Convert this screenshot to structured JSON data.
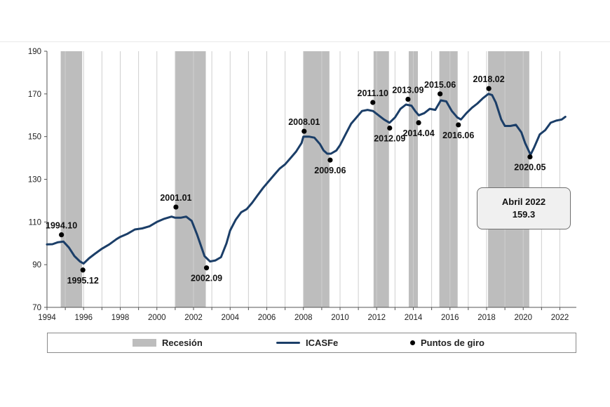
{
  "chart_data": {
    "type": "line",
    "title": "",
    "xlabel": "",
    "ylabel": "",
    "xlim": [
      1994,
      2022.9
    ],
    "ylim": [
      70,
      190
    ],
    "y_ticks": [
      70,
      90,
      110,
      130,
      150,
      170,
      190
    ],
    "y_tick_labels": [
      "70",
      "90",
      "110",
      "130",
      "150",
      "170",
      "190"
    ],
    "x_ticks": [
      1994,
      1996,
      1998,
      2000,
      2002,
      2004,
      2006,
      2008,
      2010,
      2012,
      2014,
      2016,
      2018,
      2020,
      2022
    ],
    "x_tick_labels": [
      "1994",
      "1996",
      "1998",
      "2000",
      "2002",
      "2004",
      "2006",
      "2008",
      "2010",
      "2012",
      "2014",
      "2016",
      "2018",
      "2020",
      "2022"
    ],
    "grid": "vertical",
    "recessions": [
      {
        "start": 1994.75,
        "end": 1995.92
      },
      {
        "start": 2001.0,
        "end": 2002.67
      },
      {
        "start": 2008.0,
        "end": 2009.42
      },
      {
        "start": 2011.83,
        "end": 2012.67
      },
      {
        "start": 2013.75,
        "end": 2014.25
      },
      {
        "start": 2015.42,
        "end": 2016.42
      },
      {
        "start": 2018.08,
        "end": 2020.33
      }
    ],
    "series": [
      {
        "name": "ICASFe",
        "color": "#1b3e68",
        "x": [
          1994.0,
          1994.3,
          1994.6,
          1994.9,
          1995.2,
          1995.5,
          1995.8,
          1996.0,
          1996.3,
          1996.6,
          1997.0,
          1997.4,
          1997.8,
          1998.0,
          1998.4,
          1998.8,
          1999.2,
          1999.6,
          2000.0,
          2000.4,
          2000.8,
          2001.0,
          2001.3,
          2001.6,
          2001.9,
          2002.2,
          2002.6,
          2002.9,
          2003.2,
          2003.5,
          2003.8,
          2004.0,
          2004.3,
          2004.6,
          2004.9,
          2005.2,
          2005.5,
          2005.8,
          2006.1,
          2006.4,
          2006.7,
          2007.0,
          2007.3,
          2007.6,
          2007.9,
          2008.0,
          2008.3,
          2008.6,
          2008.9,
          2009.1,
          2009.3,
          2009.5,
          2009.8,
          2010.0,
          2010.3,
          2010.6,
          2010.9,
          2011.2,
          2011.5,
          2011.8,
          2012.1,
          2012.4,
          2012.7,
          2013.0,
          2013.3,
          2013.6,
          2013.9,
          2014.1,
          2014.3,
          2014.6,
          2014.9,
          2015.2,
          2015.5,
          2015.8,
          2016.1,
          2016.4,
          2016.6,
          2016.9,
          2017.2,
          2017.5,
          2017.8,
          2018.1,
          2018.3,
          2018.5,
          2018.8,
          2019.0,
          2019.3,
          2019.6,
          2019.9,
          2020.1,
          2020.4,
          2020.6,
          2020.9,
          2021.2,
          2021.5,
          2021.8,
          2022.1,
          2022.3
        ],
        "values": [
          99.5,
          99.6,
          100.5,
          100.8,
          98.0,
          94.0,
          91.5,
          90.5,
          93.0,
          95.0,
          97.5,
          99.5,
          102.0,
          103.0,
          104.5,
          106.5,
          107.0,
          108.0,
          110.0,
          111.5,
          112.5,
          112.0,
          112.0,
          112.5,
          110.5,
          104.0,
          94.0,
          91.5,
          92.0,
          93.5,
          100.0,
          106.0,
          111.0,
          114.5,
          116.0,
          119.0,
          122.5,
          126.0,
          129.0,
          132.0,
          135.0,
          137.0,
          140.0,
          143.0,
          147.0,
          150.0,
          150.0,
          149.5,
          146.5,
          143.5,
          142.0,
          142.0,
          143.5,
          146.0,
          151.0,
          156.0,
          159.0,
          162.0,
          162.5,
          162.0,
          160.0,
          158.0,
          156.5,
          159.0,
          163.0,
          165.0,
          164.5,
          162.0,
          160.0,
          161.0,
          163.0,
          162.5,
          167.0,
          166.5,
          162.0,
          159.0,
          158.0,
          161.0,
          163.5,
          165.5,
          168.0,
          170.0,
          169.5,
          166.0,
          158.0,
          155.0,
          155.0,
          155.5,
          152.0,
          147.0,
          141.5,
          145.0,
          151.0,
          153.0,
          156.5,
          157.5,
          158.0,
          159.3
        ]
      }
    ],
    "turning_points": [
      {
        "label": "1994.10",
        "x": 1994.79,
        "y": 104.0,
        "pos": "above"
      },
      {
        "label": "1995.12",
        "x": 1995.96,
        "y": 87.5,
        "pos": "below"
      },
      {
        "label": "2001.01",
        "x": 2001.04,
        "y": 117.0,
        "pos": "above"
      },
      {
        "label": "2002.09",
        "x": 2002.71,
        "y": 88.5,
        "pos": "below"
      },
      {
        "label": "2008.01",
        "x": 2008.04,
        "y": 152.5,
        "pos": "above"
      },
      {
        "label": "2009.06",
        "x": 2009.46,
        "y": 139.0,
        "pos": "below"
      },
      {
        "label": "2011.10",
        "x": 2011.79,
        "y": 166.0,
        "pos": "above"
      },
      {
        "label": "2012.09",
        "x": 2012.71,
        "y": 154.0,
        "pos": "below"
      },
      {
        "label": "2013.09",
        "x": 2013.71,
        "y": 167.5,
        "pos": "above"
      },
      {
        "label": "2014.04",
        "x": 2014.29,
        "y": 156.5,
        "pos": "below"
      },
      {
        "label": "2015.06",
        "x": 2015.46,
        "y": 170.0,
        "pos": "above"
      },
      {
        "label": "2016.06",
        "x": 2016.46,
        "y": 155.5,
        "pos": "below"
      },
      {
        "label": "2018.02",
        "x": 2018.12,
        "y": 172.5,
        "pos": "above"
      },
      {
        "label": "2020.05",
        "x": 2020.37,
        "y": 140.5,
        "pos": "below"
      }
    ],
    "legend": {
      "placement": "bottom",
      "recession_label": "Recesión",
      "series_label": "ICASFe",
      "points_label": "Puntos de giro"
    },
    "callout": {
      "line1": "Abril 2022",
      "line2": "159.3"
    },
    "colors": {
      "recession": "#bdbdbd",
      "line": "#1b3e68",
      "grid": "#cfcfcf",
      "axis": "#555555",
      "points": "#000000"
    }
  }
}
